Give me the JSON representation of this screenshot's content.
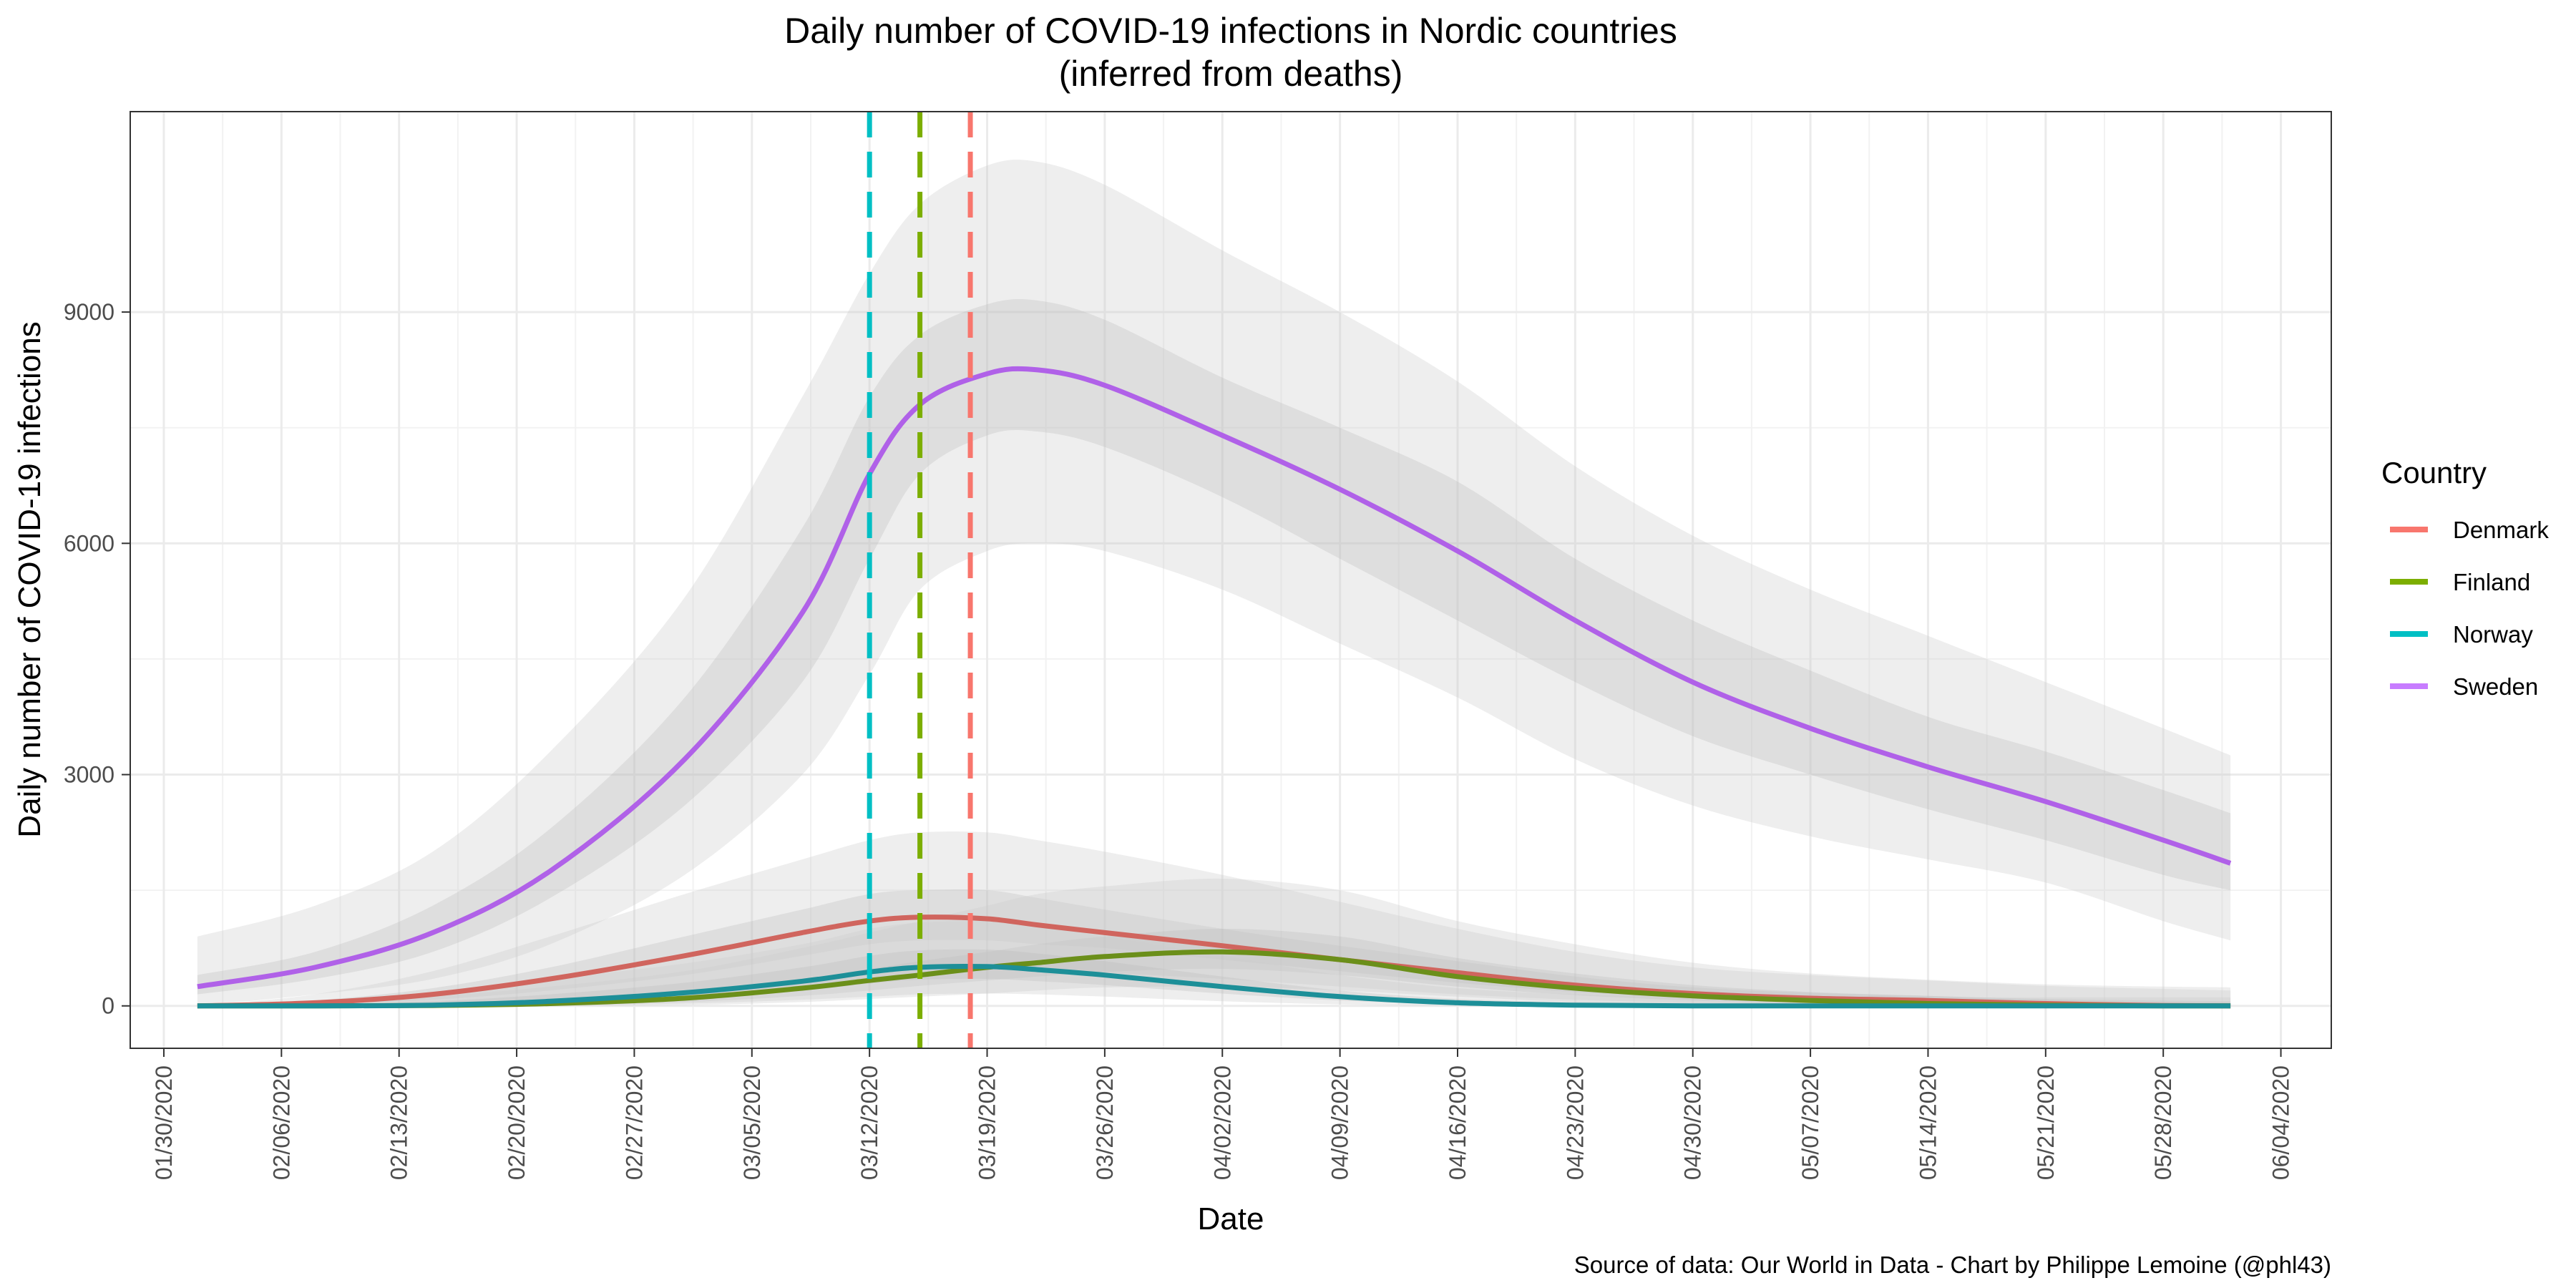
{
  "chart_data": {
    "type": "line",
    "title": "Daily number of COVID-19 infections in Nordic countries",
    "subtitle": "(inferred from deaths)",
    "xlabel": "Date",
    "ylabel": "Daily number of COVID-19 infections",
    "caption": "Source of data: Our World in Data - Chart by Philippe Lemoine (@phl43)",
    "legend_title": "Country",
    "legend_position": "right",
    "grid": true,
    "x_ticks": [
      "01/30/2020",
      "02/06/2020",
      "02/13/2020",
      "02/20/2020",
      "02/27/2020",
      "03/05/2020",
      "03/12/2020",
      "03/19/2020",
      "03/26/2020",
      "04/02/2020",
      "04/09/2020",
      "04/16/2020",
      "04/23/2020",
      "04/30/2020",
      "05/07/2020",
      "05/14/2020",
      "05/21/2020",
      "05/28/2020",
      "06/04/2020"
    ],
    "xlim": [
      "2020-01-28",
      "2020-06-07"
    ],
    "y_ticks": [
      0,
      3000,
      6000,
      9000
    ],
    "ylim": [
      -550,
      11600
    ],
    "x": [
      "2020-02-01",
      "2020-02-08",
      "2020-02-15",
      "2020-02-22",
      "2020-03-01",
      "2020-03-08",
      "2020-03-12",
      "2020-03-15",
      "2020-03-19",
      "2020-03-22",
      "2020-03-26",
      "2020-04-02",
      "2020-04-09",
      "2020-04-16",
      "2020-04-23",
      "2020-04-30",
      "2020-05-07",
      "2020-05-14",
      "2020-05-21",
      "2020-05-28",
      "2020-06-01"
    ],
    "series": [
      {
        "name": "Denmark",
        "color": "#F8766D",
        "values": [
          0,
          40,
          150,
          350,
          650,
          950,
          1100,
          1150,
          1130,
          1050,
          950,
          780,
          600,
          430,
          270,
          160,
          100,
          70,
          30,
          5,
          0
        ],
        "band_inner_low": [
          0,
          20,
          80,
          200,
          400,
          650,
          800,
          850,
          850,
          800,
          750,
          600,
          450,
          300,
          180,
          100,
          60,
          40,
          15,
          0,
          0
        ],
        "band_inner_high": [
          0,
          70,
          230,
          500,
          900,
          1250,
          1450,
          1500,
          1500,
          1400,
          1250,
          1000,
          780,
          580,
          380,
          240,
          170,
          130,
          80,
          50,
          40
        ],
        "band_outer_low": [
          0,
          0,
          20,
          80,
          200,
          350,
          450,
          500,
          500,
          480,
          430,
          350,
          250,
          150,
          80,
          40,
          20,
          10,
          0,
          0,
          0
        ],
        "band_outer_high": [
          0,
          150,
          450,
          900,
          1450,
          1900,
          2150,
          2250,
          2250,
          2150,
          2000,
          1700,
          1350,
          1000,
          700,
          500,
          400,
          330,
          260,
          220,
          200
        ],
        "reference_date": "2020-03-18"
      },
      {
        "name": "Finland",
        "color": "#7CAE00",
        "values": [
          0,
          0,
          5,
          30,
          100,
          230,
          330,
          400,
          500,
          560,
          640,
          700,
          600,
          380,
          230,
          130,
          70,
          30,
          10,
          0,
          0
        ],
        "band_inner_low": [
          0,
          0,
          0,
          10,
          50,
          130,
          200,
          260,
          330,
          380,
          440,
          480,
          400,
          250,
          140,
          70,
          30,
          10,
          0,
          0,
          0
        ],
        "band_inner_high": [
          0,
          10,
          30,
          80,
          180,
          350,
          480,
          580,
          700,
          800,
          900,
          1000,
          900,
          620,
          420,
          270,
          180,
          130,
          90,
          70,
          60
        ],
        "band_outer_low": [
          0,
          0,
          0,
          0,
          10,
          50,
          90,
          120,
          160,
          200,
          240,
          250,
          200,
          120,
          50,
          20,
          5,
          0,
          0,
          0,
          0
        ],
        "band_outer_high": [
          0,
          40,
          120,
          250,
          450,
          750,
          950,
          1100,
          1300,
          1450,
          1550,
          1650,
          1500,
          1100,
          800,
          560,
          420,
          340,
          280,
          250,
          240
        ],
        "reference_date": "2020-03-15"
      },
      {
        "name": "Norway",
        "color": "#00BFC4",
        "values": [
          0,
          0,
          10,
          60,
          170,
          320,
          440,
          500,
          510,
          470,
          400,
          250,
          120,
          40,
          10,
          0,
          0,
          0,
          0,
          0,
          0
        ],
        "band_inner_low": [
          0,
          0,
          0,
          30,
          100,
          200,
          290,
          340,
          350,
          320,
          270,
          160,
          70,
          20,
          0,
          0,
          0,
          0,
          0,
          0,
          0
        ],
        "band_inner_high": [
          0,
          20,
          60,
          150,
          300,
          500,
          650,
          720,
          730,
          680,
          580,
          380,
          200,
          90,
          50,
          40,
          40,
          40,
          40,
          40,
          40
        ],
        "band_outer_low": [
          0,
          0,
          0,
          5,
          30,
          80,
          120,
          150,
          160,
          150,
          120,
          60,
          20,
          0,
          0,
          0,
          0,
          0,
          0,
          0,
          0
        ],
        "band_outer_high": [
          0,
          60,
          180,
          350,
          550,
          800,
          1000,
          1080,
          1100,
          1050,
          900,
          650,
          400,
          230,
          150,
          120,
          110,
          110,
          110,
          110,
          110
        ],
        "reference_date": "2020-03-12"
      },
      {
        "name": "Sweden",
        "color": "#C77CFF",
        "values": [
          250,
          500,
          950,
          1750,
          3200,
          5100,
          6900,
          7800,
          8200,
          8250,
          8050,
          7400,
          6700,
          5900,
          5000,
          4200,
          3600,
          3100,
          2650,
          2150,
          1850
        ],
        "band_inner_low": [
          150,
          350,
          700,
          1400,
          2600,
          4200,
          5800,
          6900,
          7400,
          7450,
          7250,
          6600,
          5800,
          5000,
          4200,
          3500,
          3000,
          2550,
          2150,
          1700,
          1500
        ],
        "band_inner_high": [
          400,
          700,
          1300,
          2300,
          4000,
          6200,
          7900,
          8700,
          9100,
          9150,
          8900,
          8150,
          7500,
          6800,
          5800,
          5000,
          4350,
          3750,
          3300,
          2800,
          2500
        ],
        "band_outer_low": [
          0,
          150,
          350,
          800,
          1700,
          3000,
          4300,
          5400,
          5900,
          6000,
          5900,
          5400,
          4700,
          4000,
          3200,
          2600,
          2200,
          1900,
          1600,
          1100,
          850
        ],
        "band_outer_high": [
          900,
          1300,
          2000,
          3300,
          5300,
          7900,
          9500,
          10400,
          10900,
          10950,
          10650,
          9800,
          9000,
          8100,
          7000,
          6100,
          5400,
          4800,
          4200,
          3600,
          3250
        ]
      }
    ]
  }
}
